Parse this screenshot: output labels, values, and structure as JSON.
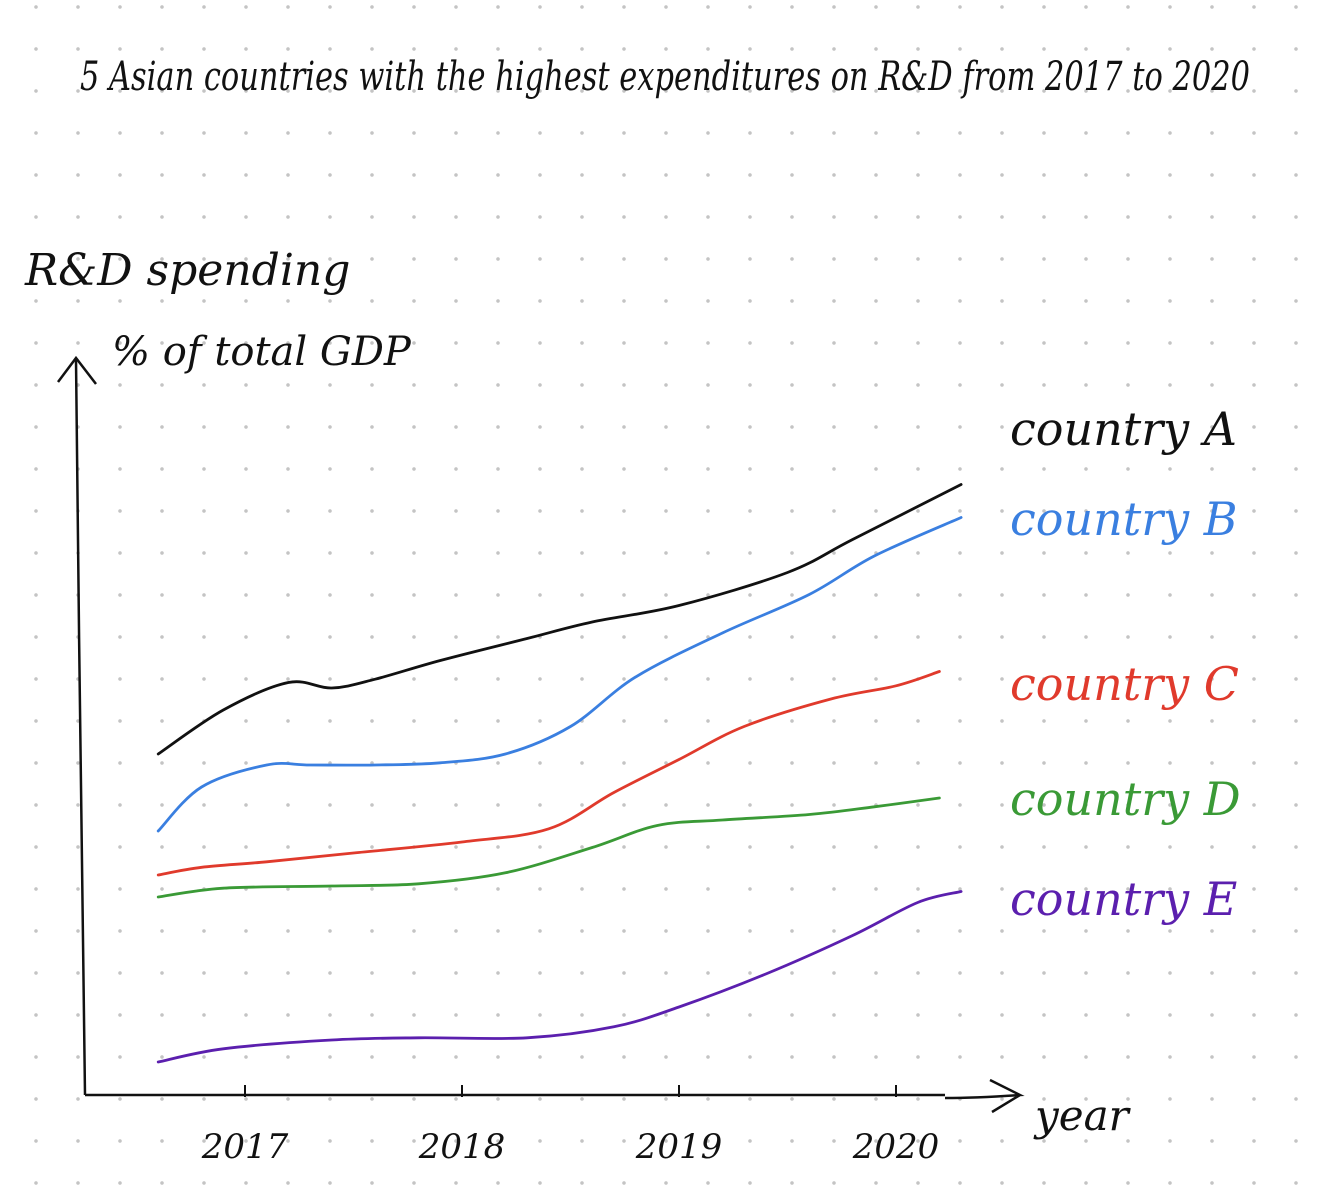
{
  "chart_data": {
    "type": "line",
    "title": "5 Asian countries with the highest expenditures on R&D from 2017 to 2020",
    "ylabel": "R&D spending",
    "ylabel_unit": "% of total GDP",
    "xlabel": "year",
    "x_ticks": [
      "2017",
      "2018",
      "2019",
      "2020"
    ],
    "grid": "dotted background",
    "legend": "right-side labels at line ends",
    "series": [
      {
        "name": "country A",
        "color": "#111111",
        "points": [
          [
            2016.6,
            3.1
          ],
          [
            2016.9,
            3.5
          ],
          [
            2017.2,
            3.75
          ],
          [
            2017.4,
            3.7
          ],
          [
            2017.6,
            3.78
          ],
          [
            2017.9,
            3.95
          ],
          [
            2018.3,
            4.15
          ],
          [
            2018.6,
            4.3
          ],
          [
            2019.0,
            4.45
          ],
          [
            2019.5,
            4.75
          ],
          [
            2019.8,
            5.05
          ],
          [
            2020.3,
            5.55
          ]
        ]
      },
      {
        "name": "country B",
        "color": "#3a7fe0",
        "points": [
          [
            2016.6,
            2.4
          ],
          [
            2016.8,
            2.8
          ],
          [
            2017.1,
            3.0
          ],
          [
            2017.3,
            3.0
          ],
          [
            2017.6,
            3.0
          ],
          [
            2017.9,
            3.02
          ],
          [
            2018.2,
            3.1
          ],
          [
            2018.5,
            3.35
          ],
          [
            2018.8,
            3.8
          ],
          [
            2019.2,
            4.2
          ],
          [
            2019.6,
            4.55
          ],
          [
            2019.9,
            4.9
          ],
          [
            2020.3,
            5.25
          ]
        ]
      },
      {
        "name": "country C",
        "color": "#e03a2c",
        "points": [
          [
            2016.6,
            2.0
          ],
          [
            2016.8,
            2.07
          ],
          [
            2017.1,
            2.12
          ],
          [
            2017.5,
            2.2
          ],
          [
            2018.0,
            2.3
          ],
          [
            2018.4,
            2.42
          ],
          [
            2018.7,
            2.75
          ],
          [
            2019.0,
            3.05
          ],
          [
            2019.3,
            3.35
          ],
          [
            2019.7,
            3.6
          ],
          [
            2020.0,
            3.72
          ],
          [
            2020.2,
            3.85
          ]
        ]
      },
      {
        "name": "country D",
        "color": "#3a9a36",
        "points": [
          [
            2016.6,
            1.8
          ],
          [
            2016.9,
            1.88
          ],
          [
            2017.4,
            1.9
          ],
          [
            2017.8,
            1.92
          ],
          [
            2018.2,
            2.02
          ],
          [
            2018.6,
            2.25
          ],
          [
            2018.9,
            2.45
          ],
          [
            2019.2,
            2.5
          ],
          [
            2019.6,
            2.55
          ],
          [
            2019.9,
            2.62
          ],
          [
            2020.2,
            2.7
          ]
        ]
      },
      {
        "name": "country E",
        "color": "#5b1fae",
        "points": [
          [
            2016.6,
            0.3
          ],
          [
            2016.9,
            0.42
          ],
          [
            2017.4,
            0.5
          ],
          [
            2017.8,
            0.52
          ],
          [
            2018.3,
            0.52
          ],
          [
            2018.7,
            0.62
          ],
          [
            2019.0,
            0.8
          ],
          [
            2019.4,
            1.1
          ],
          [
            2019.8,
            1.45
          ],
          [
            2020.1,
            1.75
          ],
          [
            2020.3,
            1.85
          ]
        ]
      }
    ]
  }
}
